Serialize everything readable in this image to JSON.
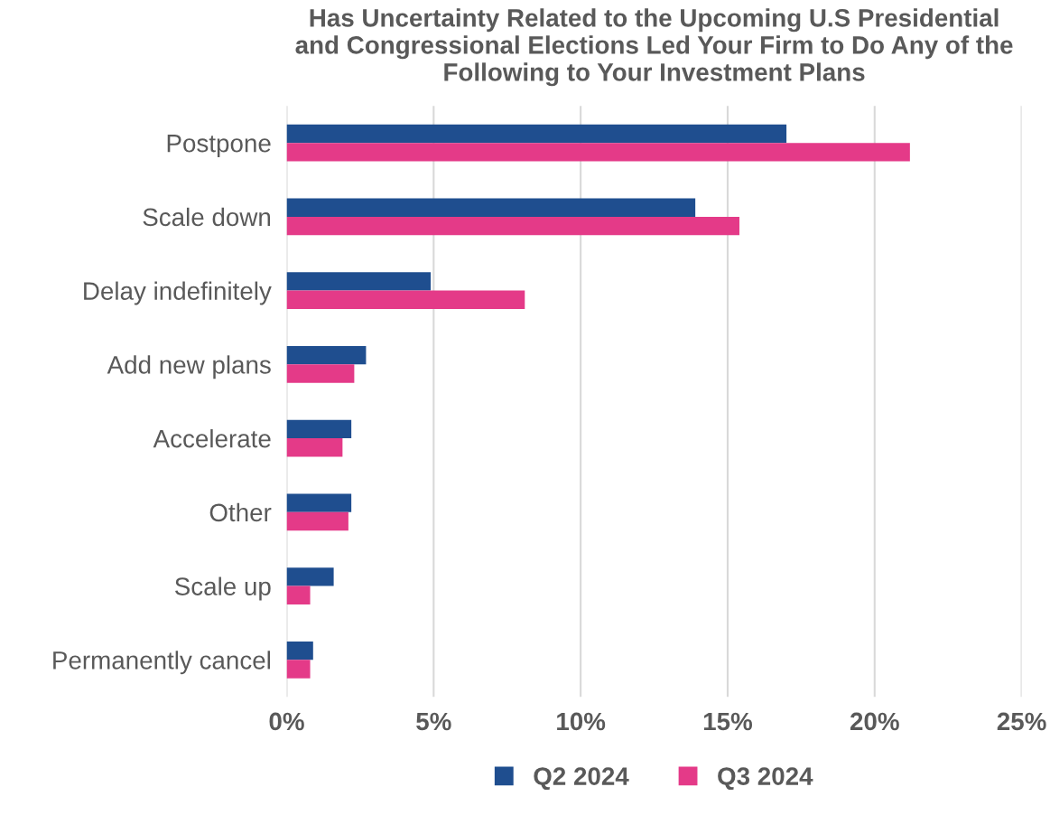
{
  "chart_data": {
    "type": "bar",
    "orientation": "horizontal",
    "title": "Has Uncertainty Related to the Upcoming U.S Presidential\nand Congressional Elections Led Your Firm to Do Any of the\nFollowing to Your Investment Plans",
    "categories": [
      "Postpone",
      "Scale down",
      "Delay indefinitely",
      "Add new plans",
      "Accelerate",
      "Other",
      "Scale up",
      "Permanently cancel"
    ],
    "series": [
      {
        "name": "Q2 2024",
        "color": "#1f4e8f",
        "values": [
          17.0,
          13.9,
          4.9,
          2.7,
          2.2,
          2.2,
          1.6,
          0.9
        ]
      },
      {
        "name": "Q3 2024",
        "color": "#e43a88",
        "values": [
          21.2,
          15.4,
          8.1,
          2.3,
          1.9,
          2.1,
          0.8,
          0.8
        ]
      }
    ],
    "xlim": [
      0,
      25
    ],
    "xticks": [
      {
        "value": 0,
        "label": "0%"
      },
      {
        "value": 5,
        "label": "5%"
      },
      {
        "value": 10,
        "label": "10%"
      },
      {
        "value": 15,
        "label": "15%"
      },
      {
        "value": 20,
        "label": "20%"
      },
      {
        "value": 25,
        "label": "25%"
      }
    ],
    "grid": "x",
    "legend": "bottom"
  }
}
